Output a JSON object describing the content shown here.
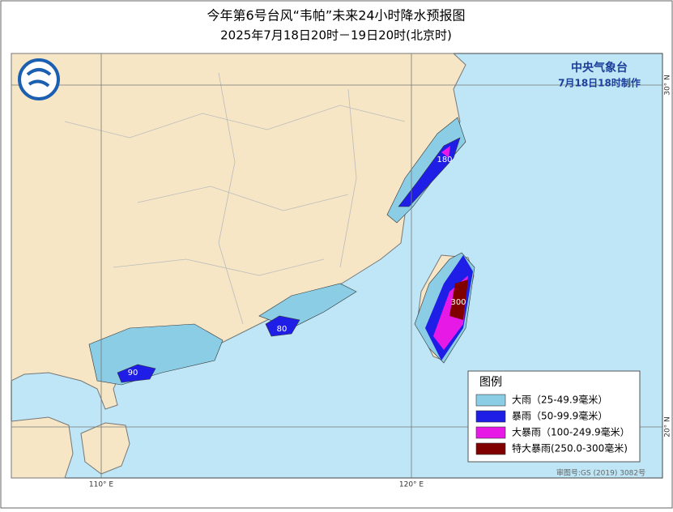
{
  "header": {
    "title": "今年第6号台风“韦帕”未来24小时降水预报图",
    "subtitle": "2025年7月18日20时－19日20时(北京时)"
  },
  "issuer": {
    "name": "中央气象台",
    "time": "7月18日18时制作"
  },
  "axes": {
    "lon": [
      "110° E",
      "120° E"
    ],
    "lat": [
      "30° N",
      "20° N"
    ]
  },
  "rain_labels": [
    180,
    300,
    80,
    90
  ],
  "legend": {
    "title": "图例",
    "items": [
      {
        "label": "大雨（25-49.9毫米）",
        "color": "#8ccde6"
      },
      {
        "label": "暴雨（50-99.9毫米）",
        "color": "#1e1ee6"
      },
      {
        "label": "大暴雨（100-249.9毫米）",
        "color": "#e619e6"
      },
      {
        "label": "特大暴雨(250.0-300毫米)",
        "color": "#800000"
      }
    ]
  },
  "footer": "审图号:GS (2019) 3082号"
}
